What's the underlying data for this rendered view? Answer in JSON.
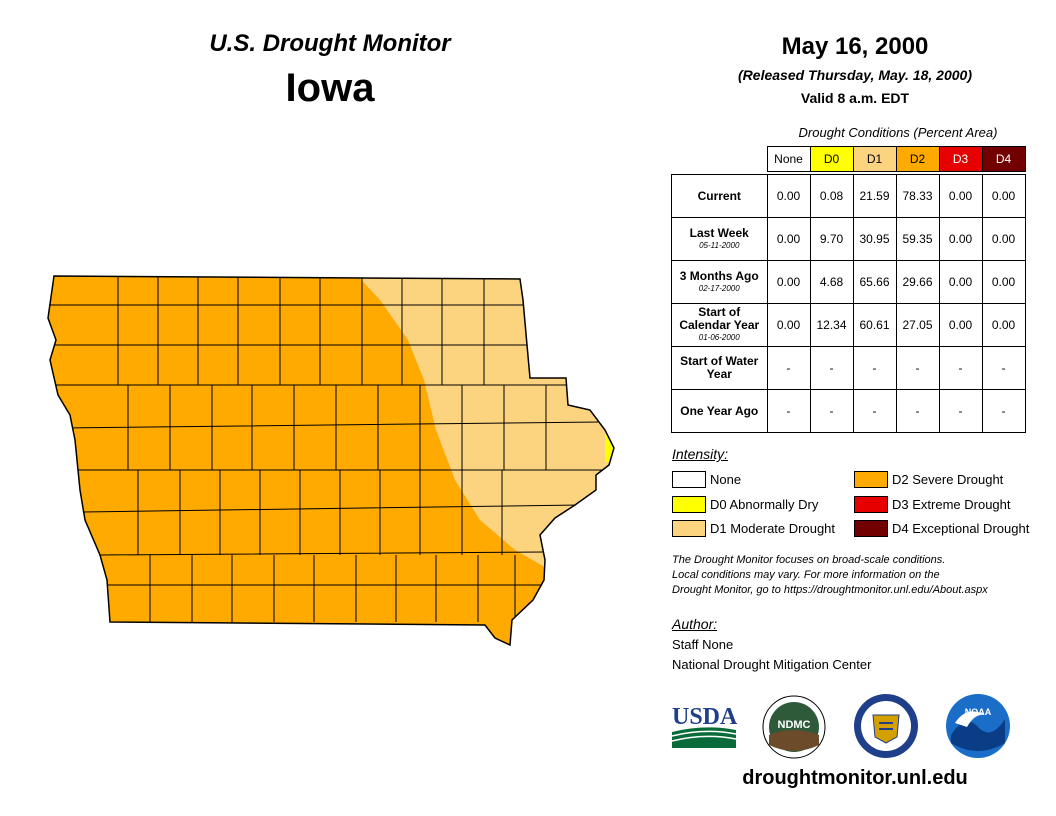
{
  "header": {
    "title": "U.S. Drought Monitor",
    "state": "Iowa",
    "date": "May 16, 2000",
    "released": "(Released Thursday, May. 18, 2000)",
    "valid": "Valid 8 a.m. EDT"
  },
  "table": {
    "caption": "Drought Conditions (Percent Area)",
    "columns": [
      "None",
      "D0",
      "D1",
      "D2",
      "D3",
      "D4"
    ],
    "rows": [
      {
        "label": "Current",
        "sublabel": "",
        "values": [
          "0.00",
          "0.08",
          "21.59",
          "78.33",
          "0.00",
          "0.00"
        ]
      },
      {
        "label": "Last Week",
        "sublabel": "05-11-2000",
        "values": [
          "0.00",
          "9.70",
          "30.95",
          "59.35",
          "0.00",
          "0.00"
        ]
      },
      {
        "label": "3 Months Ago",
        "sublabel": "02-17-2000",
        "values": [
          "0.00",
          "4.68",
          "65.66",
          "29.66",
          "0.00",
          "0.00"
        ]
      },
      {
        "label": "Start of Calendar Year",
        "sublabel": "01-06-2000",
        "values": [
          "0.00",
          "12.34",
          "60.61",
          "27.05",
          "0.00",
          "0.00"
        ]
      },
      {
        "label": "Start of Water Year",
        "sublabel": "",
        "values": [
          "-",
          "-",
          "-",
          "-",
          "-",
          "-"
        ]
      },
      {
        "label": "One Year Ago",
        "sublabel": "",
        "values": [
          "-",
          "-",
          "-",
          "-",
          "-",
          "-"
        ]
      }
    ]
  },
  "legend": {
    "title": "Intensity:",
    "items": [
      {
        "label": "None",
        "color": "#ffffff"
      },
      {
        "label": "D0 Abnormally Dry",
        "color": "#ffff00"
      },
      {
        "label": "D1 Moderate Drought",
        "color": "#fcd37f"
      },
      {
        "label": "D2 Severe Drought",
        "color": "#ffaa00"
      },
      {
        "label": "D3 Extreme Drought",
        "color": "#e60000"
      },
      {
        "label": "D4 Exceptional Drought",
        "color": "#730000"
      }
    ]
  },
  "disclaimer": {
    "line1": "The Drought Monitor focuses on broad-scale conditions.",
    "line2": "Local conditions may vary. For more information on the",
    "line3": "Drought Monitor, go to https://droughtmonitor.unl.edu/About.aspx"
  },
  "author": {
    "title": "Author:",
    "name": "Staff None",
    "org": "National Drought Mitigation Center"
  },
  "logos": {
    "usda": "USDA",
    "ndmc": "NDMC",
    "noaa": "NOAA"
  },
  "website": "droughtmonitor.unl.edu",
  "colors": {
    "none": "#ffffff",
    "d0": "#ffff00",
    "d1": "#fcd37f",
    "d2": "#ffaa00",
    "d3": "#e60000",
    "d4": "#730000"
  }
}
